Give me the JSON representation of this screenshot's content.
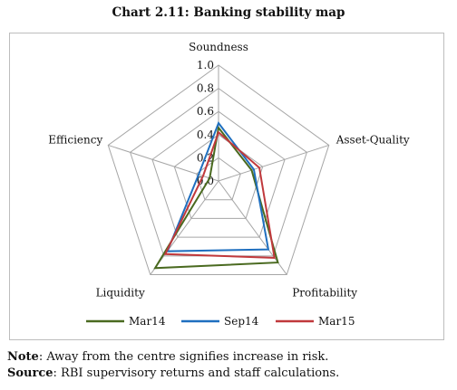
{
  "title": "Chart 2.11: Banking stability map",
  "chart_data": {
    "type": "radar",
    "axes": [
      "Soundness",
      "Asset-Quality",
      "Profitability",
      "Liquidity",
      "Efficiency"
    ],
    "rlim": [
      0,
      1.0
    ],
    "ticks": [
      "0.0",
      "0.2",
      "0.4",
      "0.6",
      "0.8",
      "1.0"
    ],
    "tick_values": [
      0,
      0.2,
      0.4,
      0.6,
      0.8,
      1.0
    ],
    "grid": true,
    "legend": "bottom",
    "series": [
      {
        "name": "Mar14",
        "color": "#4a6a20",
        "values": [
          0.46,
          0.3,
          0.87,
          0.93,
          0.08
        ]
      },
      {
        "name": "Sep14",
        "color": "#1f6fbf",
        "values": [
          0.5,
          0.32,
          0.73,
          0.75,
          0.18
        ]
      },
      {
        "name": "Mar15",
        "color": "#c0393c",
        "values": [
          0.42,
          0.37,
          0.82,
          0.78,
          0.14
        ]
      }
    ]
  },
  "notes": {
    "note_label": "Note",
    "note_text": ": Away from the centre signifies increase in risk.",
    "source_label": "Source",
    "source_text": ": RBI supervisory returns and staff calculations."
  }
}
